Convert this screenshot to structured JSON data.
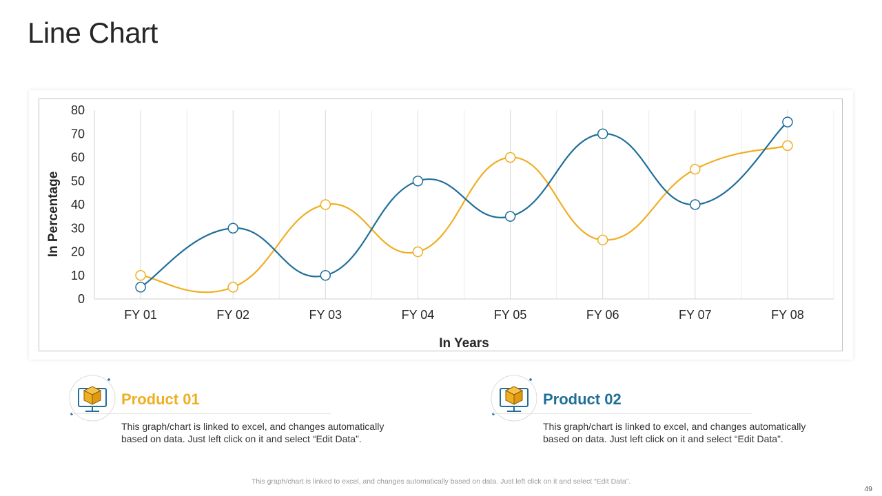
{
  "slide": {
    "title": "Line Chart",
    "footer_note": "This graph/chart is linked to excel, and changes automatically based on data. Just left click on it and select “Edit Data”.",
    "page_number": "49"
  },
  "products": [
    {
      "name": "Product 01",
      "description": "This graph/chart is linked to excel, and changes automatically based on data. Just left click on it and select “Edit Data”.",
      "icon": "box-on-monitor-icon",
      "color": "#f0ae22"
    },
    {
      "name": "Product 02",
      "description": "This graph/chart is linked to excel, and changes automatically based on data. Just left click on it and select “Edit Data”.",
      "icon": "box-on-monitor-icon",
      "color": "#1f6f99"
    }
  ],
  "chart_data": {
    "type": "line",
    "smooth": true,
    "categories": [
      "FY 01",
      "FY 02",
      "FY 03",
      "FY 04",
      "FY 05",
      "FY 06",
      "FY 07",
      "FY 08"
    ],
    "series": [
      {
        "name": "Product 01",
        "color": "#f0ae22",
        "values": [
          10,
          5,
          40,
          20,
          60,
          25,
          55,
          65
        ]
      },
      {
        "name": "Product 02",
        "color": "#1f6f99",
        "values": [
          5,
          30,
          10,
          50,
          35,
          70,
          40,
          75
        ]
      }
    ],
    "xlabel": "In Years",
    "ylabel": "In Percentage",
    "ylim": [
      0,
      80
    ],
    "yticks": [
      0,
      10,
      20,
      30,
      40,
      50,
      60,
      70,
      80
    ],
    "grid": {
      "vertical": true,
      "horizontal": false
    },
    "legend": "none"
  }
}
